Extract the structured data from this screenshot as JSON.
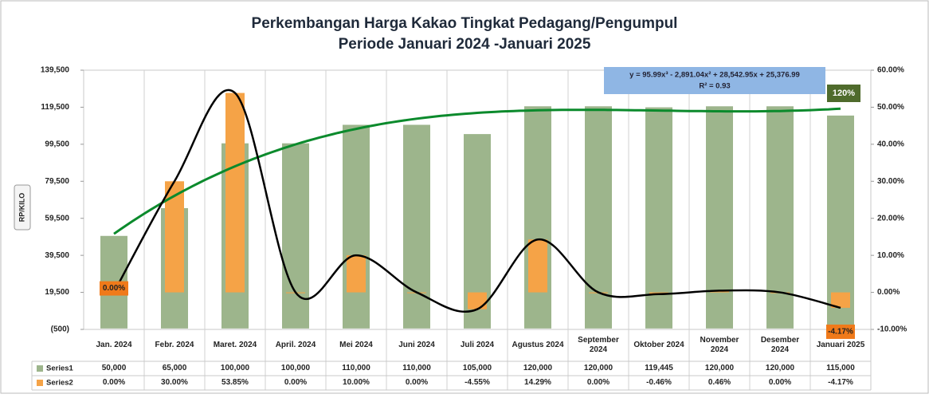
{
  "chart_data": {
    "type": "bar",
    "title": "Perkembangan Harga Kakao Tingkat Pedagang/Pengumpul",
    "subtitle": "Periode Januari 2024 -Januari 2025",
    "y_label": "RP/KILO",
    "categories": [
      "Jan. 2024",
      "Febr. 2024",
      "Maret. 2024",
      "April. 2024",
      "Mei 2024",
      "Juni 2024",
      "Juli 2024",
      "Agustus 2024",
      "September 2024",
      "Oktober 2024",
      "November 2024",
      "Desember 2024",
      "Januari 2025"
    ],
    "series": [
      {
        "name": "Series1",
        "color": "#9db58c",
        "values": [
          50000,
          65000,
          100000,
          100000,
          110000,
          110000,
          105000,
          120000,
          120000,
          119445,
          120000,
          120000,
          115000
        ],
        "value_labels": [
          "50,000",
          "65,000",
          "100,000",
          "100,000",
          "110,000",
          "110,000",
          "105,000",
          "120,000",
          "120,000",
          "119,445",
          "120,000",
          "120,000",
          "115,000"
        ]
      },
      {
        "name": "Series2",
        "color": "#f5a347",
        "line_color": "#000000",
        "axis": "y2",
        "values": [
          0,
          30,
          53.85,
          0,
          10,
          0,
          -4.55,
          14.29,
          0,
          -0.46,
          0.46,
          0,
          -4.17
        ],
        "value_labels": [
          "0.00%",
          "30.00%",
          "53.85%",
          "0.00%",
          "10.00%",
          "0.00%",
          "-4.55%",
          "14.29%",
          "0.00%",
          "-0.46%",
          "0.46%",
          "0.00%",
          "-4.17%"
        ]
      }
    ],
    "ylim": [
      -500,
      139500
    ],
    "yticks": [
      {
        "value": -500,
        "label": "(500)"
      },
      {
        "value": 19500,
        "label": "19,500"
      },
      {
        "value": 39500,
        "label": "39,500"
      },
      {
        "value": 59500,
        "label": "59,500"
      },
      {
        "value": 79500,
        "label": "79,500"
      },
      {
        "value": 99500,
        "label": "99,500"
      },
      {
        "value": 119500,
        "label": "119,500"
      },
      {
        "value": 139500,
        "label": "139,500"
      }
    ],
    "y2lim": [
      -10,
      60
    ],
    "y2ticks": [
      {
        "value": -10,
        "label": "-10.00%"
      },
      {
        "value": 0,
        "label": "0.00%"
      },
      {
        "value": 10,
        "label": "10.00%"
      },
      {
        "value": 20,
        "label": "20.00%"
      },
      {
        "value": 30,
        "label": "30.00%"
      },
      {
        "value": 40,
        "label": "40.00%"
      },
      {
        "value": 50,
        "label": "50.00%"
      },
      {
        "value": 60,
        "label": "60.00%"
      }
    ],
    "trendline": {
      "label": "y = 95.99x³ - 2,891.04x² + 28,542.95x + 25,376.99",
      "r2_label": "R² = 0.93",
      "color": "#0b8a2c",
      "coefficients": [
        95.99,
        -2891.04,
        28542.95,
        25376.99
      ]
    },
    "annotation": "120%"
  }
}
